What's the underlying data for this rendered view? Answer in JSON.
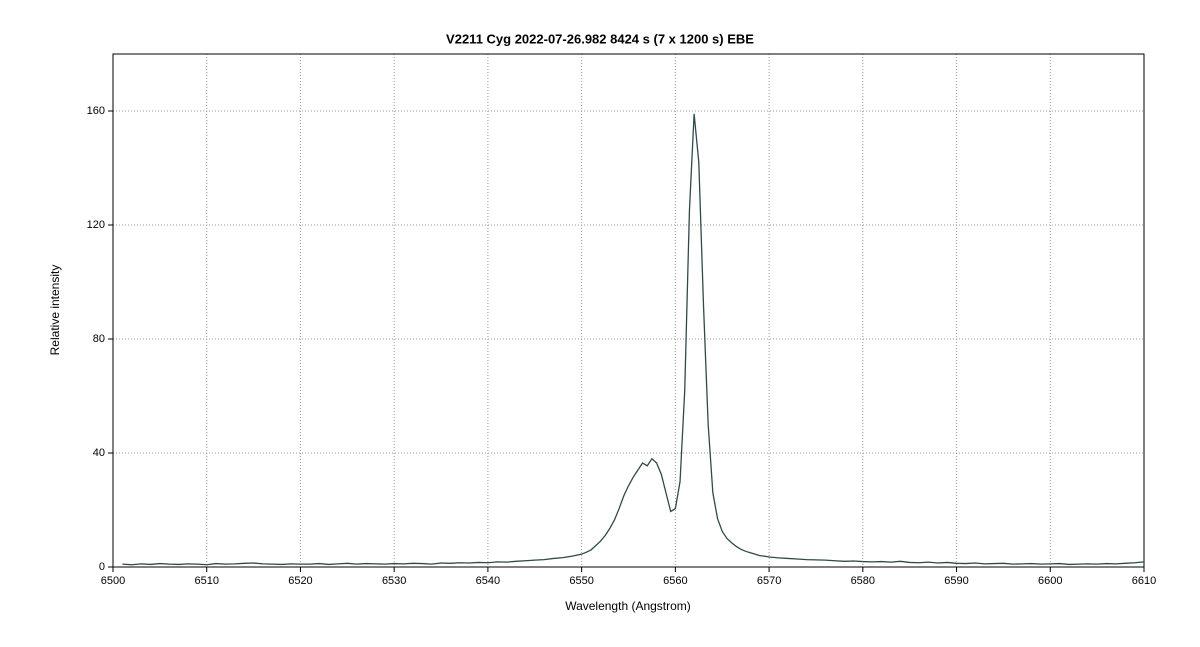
{
  "chart_data": {
    "type": "line",
    "title": "V2211 Cyg   2022-07-26.982   8424 s (7 x 1200 s)   EBE",
    "x_label": "Wavelength (Angstrom)",
    "y_label": "Relative intensity",
    "xlim": [
      6500,
      6610
    ],
    "xticks": [
      6500,
      6510,
      6520,
      6530,
      6540,
      6550,
      6560,
      6570,
      6580,
      6590,
      6600,
      6610
    ],
    "ylim": [
      0,
      180
    ],
    "yticks": [
      0,
      40,
      80,
      120,
      160
    ],
    "grid": true,
    "x": [
      6501,
      6502,
      6503,
      6504,
      6505,
      6506,
      6507,
      6508,
      6509,
      6510,
      6511,
      6512,
      6513,
      6514,
      6515,
      6516,
      6517,
      6518,
      6519,
      6520,
      6521,
      6522,
      6523,
      6524,
      6525,
      6526,
      6527,
      6528,
      6529,
      6530,
      6531,
      6532,
      6533,
      6534,
      6535,
      6536,
      6537,
      6538,
      6539,
      6540,
      6541,
      6542,
      6543,
      6544,
      6545,
      6546,
      6547,
      6548,
      6549,
      6550,
      6550.5,
      6551,
      6551.5,
      6552,
      6552.5,
      6553,
      6553.5,
      6554,
      6554.5,
      6555,
      6555.5,
      6556,
      6556.5,
      6557,
      6557.5,
      6558,
      6558.5,
      6559,
      6559.5,
      6560,
      6560.5,
      6561,
      6561.5,
      6562,
      6562.5,
      6563,
      6563.5,
      6564,
      6564.5,
      6565,
      6565.5,
      6566,
      6566.5,
      6567,
      6567.5,
      6568,
      6568.5,
      6569,
      6569.5,
      6570,
      6571,
      6572,
      6573,
      6574,
      6575,
      6576,
      6577,
      6578,
      6579,
      6580,
      6581,
      6582,
      6583,
      6584,
      6585,
      6586,
      6587,
      6588,
      6589,
      6590,
      6591,
      6592,
      6593,
      6594,
      6595,
      6596,
      6597,
      6598,
      6599,
      6600,
      6601,
      6602,
      6603,
      6604,
      6605,
      6606,
      6607,
      6608,
      6609,
      6610
    ],
    "series": [
      {
        "color": "#2f4a4a",
        "values": [
          1.0,
          0.8,
          1.1,
          0.9,
          1.2,
          1.0,
          0.9,
          1.1,
          1.0,
          0.8,
          1.2,
          1.0,
          1.1,
          1.3,
          1.4,
          1.1,
          1.0,
          0.9,
          1.1,
          1.0,
          1.0,
          1.2,
          0.9,
          1.1,
          1.3,
          1.0,
          1.2,
          1.1,
          1.0,
          1.2,
          1.1,
          1.3,
          1.2,
          1.0,
          1.4,
          1.3,
          1.5,
          1.4,
          1.6,
          1.5,
          1.8,
          1.7,
          2.0,
          2.2,
          2.4,
          2.6,
          3.0,
          3.3,
          3.8,
          4.5,
          5.2,
          6.0,
          7.5,
          9.0,
          11.0,
          13.5,
          16.5,
          20.5,
          25.0,
          28.5,
          31.5,
          34.0,
          36.5,
          35.5,
          38.0,
          36.5,
          32.5,
          26.0,
          19.5,
          20.5,
          30.0,
          62.0,
          125.0,
          159.0,
          142.0,
          92.0,
          50.0,
          26.0,
          17.0,
          12.5,
          10.0,
          8.5,
          7.2,
          6.2,
          5.5,
          5.0,
          4.5,
          4.0,
          3.8,
          3.5,
          3.2,
          3.0,
          2.8,
          2.6,
          2.5,
          2.4,
          2.2,
          2.0,
          2.1,
          1.9,
          1.8,
          1.9,
          1.7,
          2.0,
          1.6,
          1.5,
          1.7,
          1.4,
          1.6,
          1.3,
          1.2,
          1.4,
          1.1,
          1.2,
          1.3,
          1.0,
          1.1,
          1.2,
          1.0,
          1.1,
          1.2,
          0.9,
          1.0,
          1.1,
          1.0,
          1.2,
          1.1,
          1.3,
          1.5,
          1.8
        ]
      }
    ]
  }
}
